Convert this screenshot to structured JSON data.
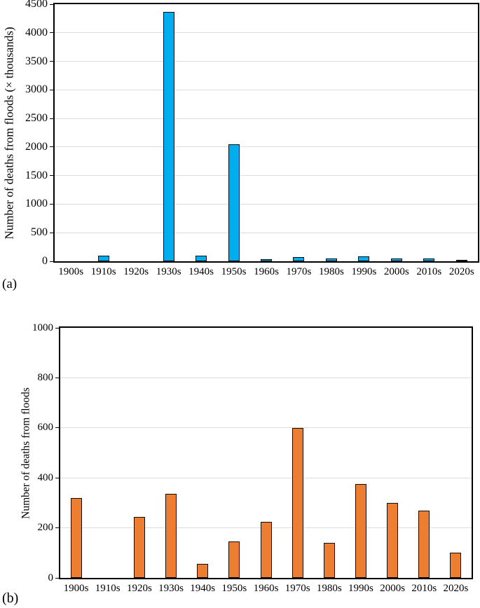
{
  "figure": {
    "background_color": "#ffffff",
    "text_color": "#000000"
  },
  "chart_data": [
    {
      "id": "a",
      "type": "bar",
      "panel_label": "(a)",
      "title": "",
      "xlabel": "",
      "ylabel": "Number of deaths from floods (× thousands)",
      "categories": [
        "1900s",
        "1910s",
        "1920s",
        "1930s",
        "1940s",
        "1950s",
        "1960s",
        "1970s",
        "1980s",
        "1990s",
        "2000s",
        "2010s",
        "2020s"
      ],
      "values": [
        0,
        100,
        0,
        4360,
        100,
        2050,
        35,
        75,
        50,
        90,
        55,
        55,
        20
      ],
      "ylim": [
        0,
        4500
      ],
      "yticks": [
        0,
        500,
        1000,
        1500,
        2000,
        2500,
        3000,
        3500,
        4000,
        4500
      ],
      "bar_color": "#00AEEF",
      "bar_border_color": "#0d0d0d",
      "grid": true,
      "gridline_color": "#dcdcdc",
      "axis_border_color": "#000000",
      "legend": "none"
    },
    {
      "id": "b",
      "type": "bar",
      "panel_label": "(b)",
      "title": "",
      "xlabel": "",
      "ylabel": "Number of deaths from floods",
      "categories": [
        "1900s",
        "1910s",
        "1920s",
        "1930s",
        "1940s",
        "1950s",
        "1960s",
        "1970s",
        "1980s",
        "1990s",
        "2000s",
        "2010s",
        "2020s"
      ],
      "values": [
        320,
        0,
        245,
        335,
        55,
        145,
        225,
        600,
        140,
        375,
        300,
        270,
        100
      ],
      "ylim": [
        0,
        1000
      ],
      "yticks": [
        0,
        200,
        400,
        600,
        800,
        1000
      ],
      "bar_color": "#ED7D31",
      "bar_border_color": "#0d0d0d",
      "grid": true,
      "gridline_color": "#dcdcdc",
      "axis_border_color": "#000000",
      "legend": "none"
    }
  ]
}
